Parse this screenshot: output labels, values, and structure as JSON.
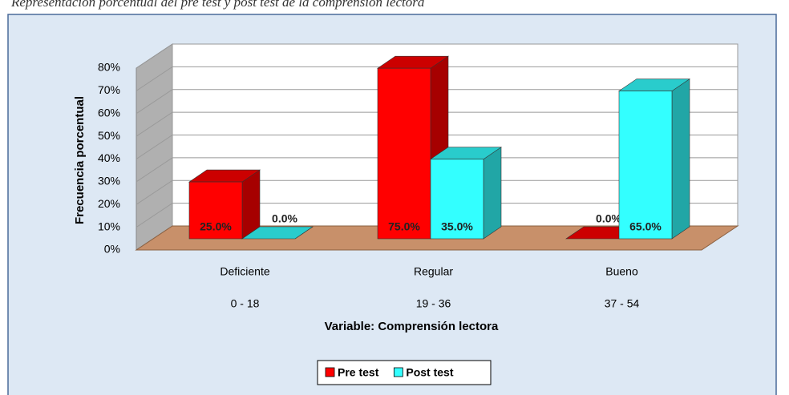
{
  "chart_data": {
    "type": "bar3d",
    "title": "Representación porcentual del pre test y post test de la comprensión lectora",
    "categories": [
      "Deficiente",
      "Regular",
      "Bueno"
    ],
    "category_ranges": [
      "0 - 18",
      "19 - 36",
      "37 - 54"
    ],
    "x_label": "Variable: Comprensión lectora",
    "y_label": "Frecuencia porcentual",
    "ylim": [
      0,
      80
    ],
    "yticks": [
      {
        "value": 0,
        "label": "0%"
      },
      {
        "value": 10,
        "label": "10%"
      },
      {
        "value": 20,
        "label": "20%"
      },
      {
        "value": 30,
        "label": "30%"
      },
      {
        "value": 40,
        "label": "40%"
      },
      {
        "value": 50,
        "label": "50%"
      },
      {
        "value": 60,
        "label": "60%"
      },
      {
        "value": 70,
        "label": "70%"
      },
      {
        "value": 80,
        "label": "80%"
      }
    ],
    "grid": true,
    "legend": "bottom",
    "series": [
      {
        "name": "Pre test",
        "color": "#ff0000",
        "values": [
          25,
          75,
          0
        ],
        "value_labels": [
          "25.0%",
          "75.0%",
          "0.0%"
        ]
      },
      {
        "name": "Post test",
        "color": "#33ffff",
        "values": [
          0,
          35,
          65
        ],
        "value_labels": [
          "0.0%",
          "35.0%",
          "65.0%"
        ]
      }
    ]
  }
}
